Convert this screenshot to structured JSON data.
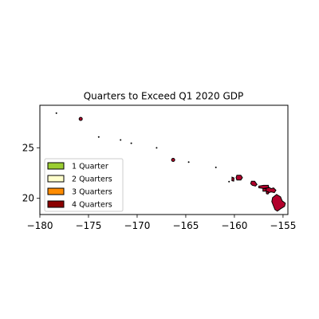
{
  "map": {
    "title": "Quarters to Exceed Q1 2020 GDP",
    "x_ticks": [
      {
        "value": -180,
        "label": "−180"
      },
      {
        "value": -175,
        "label": "−175"
      },
      {
        "value": -170,
        "label": "−170"
      },
      {
        "value": -165,
        "label": "−165"
      },
      {
        "value": -160,
        "label": "−160"
      },
      {
        "value": -155,
        "label": "−155"
      }
    ],
    "y_ticks": [
      {
        "value": 20,
        "label": "20"
      },
      {
        "value": 25,
        "label": "25"
      }
    ],
    "xlim": [
      -180,
      -154.5
    ],
    "ylim": [
      18.4,
      29.2
    ],
    "legend": {
      "placement": "lower-left",
      "entries": [
        {
          "label": "1 Quarter",
          "color": "#9acd32"
        },
        {
          "label": "2 Quarters",
          "color": "#ffffcc"
        },
        {
          "label": "3 Quarters",
          "color": "#ff8c00"
        },
        {
          "label": "4 Quarters",
          "color": "#8b0000"
        }
      ]
    },
    "region_fill": "#b2002c",
    "islands": [
      {
        "name": "hawaii",
        "lon": -155.5,
        "lat": 19.6,
        "size": "large"
      },
      {
        "name": "maui",
        "lon": -156.3,
        "lat": 20.8,
        "size": "medium"
      },
      {
        "name": "kahoolawe",
        "lon": -156.6,
        "lat": 20.55,
        "size": "tiny"
      },
      {
        "name": "lanai",
        "lon": -156.9,
        "lat": 20.82,
        "size": "small"
      },
      {
        "name": "molokai",
        "lon": -157.0,
        "lat": 21.13,
        "size": "medium"
      },
      {
        "name": "oahu",
        "lon": -158.0,
        "lat": 21.45,
        "size": "medium"
      },
      {
        "name": "kauai",
        "lon": -159.5,
        "lat": 22.05,
        "size": "medium"
      },
      {
        "name": "niihau",
        "lon": -160.15,
        "lat": 21.9,
        "size": "small"
      },
      {
        "name": "kaula",
        "lon": -160.55,
        "lat": 21.65,
        "size": "dot"
      },
      {
        "name": "nihoa",
        "lon": -161.9,
        "lat": 23.06,
        "size": "dot"
      },
      {
        "name": "necker",
        "lon": -164.7,
        "lat": 23.58,
        "size": "dot"
      },
      {
        "name": "french-frigate-shoals",
        "lon": -166.3,
        "lat": 23.8,
        "size": "small"
      },
      {
        "name": "gardner-pinnacles",
        "lon": -168.0,
        "lat": 24.99,
        "size": "dot"
      },
      {
        "name": "maro-reef",
        "lon": -170.6,
        "lat": 25.45,
        "size": "dot"
      },
      {
        "name": "laysan",
        "lon": -171.7,
        "lat": 25.77,
        "size": "dot"
      },
      {
        "name": "lisianski",
        "lon": -173.95,
        "lat": 26.06,
        "size": "dot"
      },
      {
        "name": "pearl-and-hermes",
        "lon": -175.8,
        "lat": 27.85,
        "size": "small"
      },
      {
        "name": "kure",
        "lon": -178.3,
        "lat": 28.42,
        "size": "dot"
      }
    ]
  }
}
